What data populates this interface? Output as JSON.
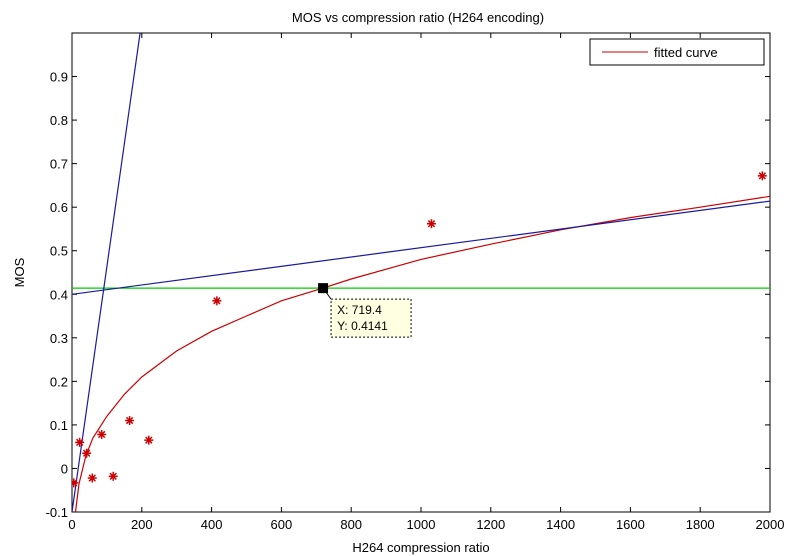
{
  "chart_data": {
    "type": "scatter",
    "title": "MOS vs compression ratio (H264 encoding)",
    "xlabel": "H264 compression ratio",
    "ylabel": "MOS",
    "xlim": [
      0,
      2000
    ],
    "ylim": [
      -0.1,
      1.0
    ],
    "xticks": [
      0,
      200,
      400,
      600,
      800,
      1000,
      1200,
      1400,
      1600,
      1800,
      2000
    ],
    "yticks": [
      -0.1,
      0,
      0.1,
      0.2,
      0.3,
      0.4,
      0.5,
      0.6,
      0.7,
      0.8,
      0.9
    ],
    "ytick_labels": [
      "-0.1",
      "0",
      "0.1",
      "0.2",
      "0.3",
      "0.4",
      "0.5",
      "0.6",
      "0.7",
      "0.8",
      "0.9"
    ],
    "grid": false,
    "legend_position": "top-right",
    "series": [
      {
        "kind": "scatter",
        "marker": "asterisk",
        "color": "#cc0000",
        "points": [
          {
            "x": 5,
            "y": -0.033
          },
          {
            "x": 22,
            "y": 0.06
          },
          {
            "x": 42,
            "y": 0.035
          },
          {
            "x": 58,
            "y": -0.022
          },
          {
            "x": 85,
            "y": 0.078
          },
          {
            "x": 118,
            "y": -0.018
          },
          {
            "x": 165,
            "y": 0.11
          },
          {
            "x": 220,
            "y": 0.065
          },
          {
            "x": 415,
            "y": 0.385
          },
          {
            "x": 1030,
            "y": 0.562
          },
          {
            "x": 1978,
            "y": 0.672
          }
        ]
      },
      {
        "name": "fitted curve",
        "kind": "line",
        "color": "#cc0000",
        "points": [
          {
            "x": 10,
            "y": -0.1
          },
          {
            "x": 20,
            "y": -0.035
          },
          {
            "x": 40,
            "y": 0.03
          },
          {
            "x": 60,
            "y": 0.07
          },
          {
            "x": 100,
            "y": 0.12
          },
          {
            "x": 150,
            "y": 0.17
          },
          {
            "x": 200,
            "y": 0.21
          },
          {
            "x": 300,
            "y": 0.27
          },
          {
            "x": 400,
            "y": 0.315
          },
          {
            "x": 500,
            "y": 0.35
          },
          {
            "x": 600,
            "y": 0.385
          },
          {
            "x": 719.4,
            "y": 0.4141
          },
          {
            "x": 800,
            "y": 0.435
          },
          {
            "x": 1000,
            "y": 0.48
          },
          {
            "x": 1200,
            "y": 0.515
          },
          {
            "x": 1400,
            "y": 0.548
          },
          {
            "x": 1600,
            "y": 0.576
          },
          {
            "x": 1800,
            "y": 0.6
          },
          {
            "x": 2000,
            "y": 0.625
          }
        ]
      },
      {
        "kind": "line",
        "color": "#00cc00",
        "points": [
          {
            "x": 0,
            "y": 0.4141
          },
          {
            "x": 2000,
            "y": 0.4141
          }
        ]
      },
      {
        "kind": "line",
        "color": "#1a1aa0",
        "points": [
          {
            "x": 0,
            "y": 0.4
          },
          {
            "x": 2000,
            "y": 0.614
          }
        ]
      },
      {
        "kind": "line",
        "color": "#1a1aa0",
        "points": [
          {
            "x": 0,
            "y": -0.1
          },
          {
            "x": 195,
            "y": 1.0
          }
        ]
      }
    ],
    "datatip": {
      "x": 719.4,
      "y": 0.4141,
      "label_x": "X: 719.4",
      "label_y": "Y: 0.4141"
    }
  }
}
